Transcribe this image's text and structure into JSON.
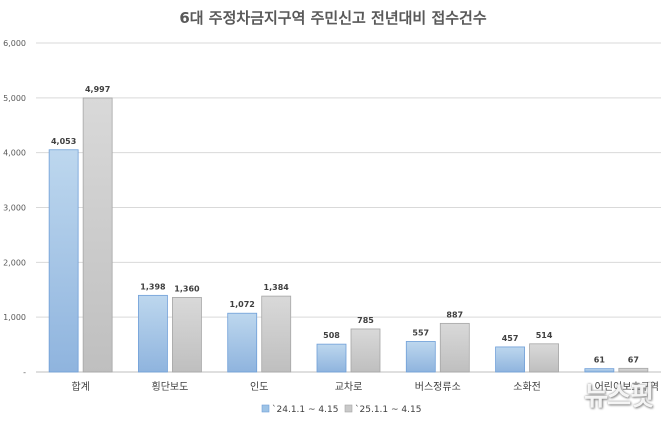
{
  "chart_data": {
    "type": "bar",
    "title": "6대 주정차금지구역 주민신고 전년대비 접수건수",
    "categories": [
      "합계",
      "횡단보도",
      "인도",
      "교차로",
      "버스정류소",
      "소화전",
      "어린이보호구역"
    ],
    "series": [
      {
        "name": "`24.1.1 ~ 4.15",
        "values": [
          4053,
          1398,
          1072,
          508,
          557,
          457,
          61
        ],
        "color": "#9dc3e6"
      },
      {
        "name": "`25.1.1 ~ 4.15",
        "values": [
          4997,
          1360,
          1384,
          785,
          887,
          514,
          67
        ],
        "color": "#c9c9c9"
      }
    ],
    "data_labels": [
      [
        "4,053",
        "1,398",
        "1,072",
        "508",
        "557",
        "457",
        "61"
      ],
      [
        "4,997",
        "1,360",
        "1,384",
        "785",
        "887",
        "514",
        "67"
      ]
    ],
    "ylim": [
      0,
      6000
    ],
    "yticks": [
      0,
      1000,
      2000,
      3000,
      4000,
      5000,
      6000
    ],
    "ytick_labels": [
      "-",
      "1,000",
      "2,000",
      "3,000",
      "4,000",
      "5,000",
      "6,000"
    ],
    "grid": true,
    "legend_position": "bottom"
  },
  "watermark": {
    "text": "뉴스핏"
  }
}
